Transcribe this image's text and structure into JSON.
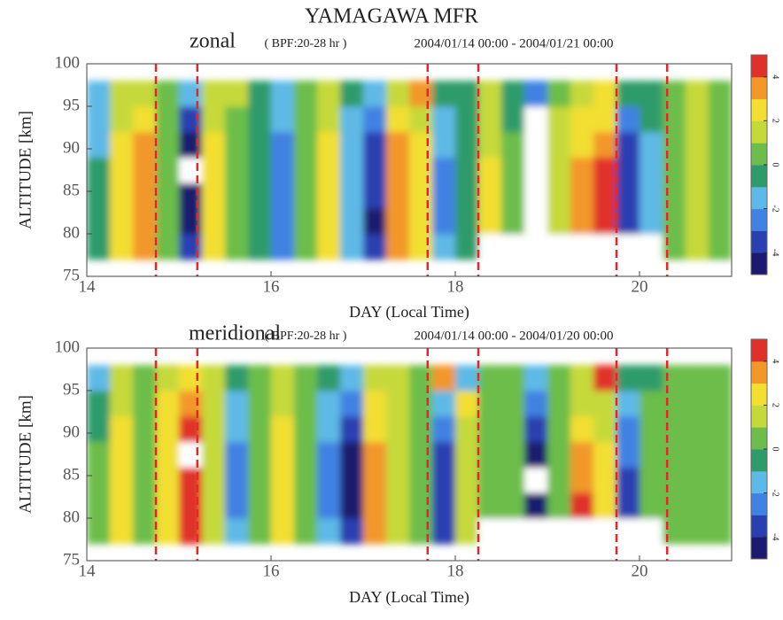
{
  "title": "YAMAGAWA MFR",
  "chart_data": [
    {
      "type": "heatmap",
      "name": "zonal",
      "filter": "( BPF:20-28 hr )",
      "period": "2004/01/14 00:00 - 2004/01/21 00:00",
      "xlabel": "DAY (Local Time)",
      "ylabel": "ALTITUDE [km]",
      "xlim": [
        14,
        21
      ],
      "xticks": [
        14,
        16,
        18,
        20
      ],
      "ylim": [
        75,
        100
      ],
      "yticks": [
        75,
        80,
        85,
        90,
        95,
        100
      ],
      "zlim": [
        -5,
        5
      ],
      "zticks": [
        -4,
        -2,
        0,
        2,
        4
      ],
      "colormap": [
        "#1c1a6e",
        "#2a3fb0",
        "#3f82e2",
        "#5fb9e6",
        "#2f9b6a",
        "#6cbd4a",
        "#c6d93a",
        "#f2df30",
        "#f2972a",
        "#e0302a"
      ],
      "marker_color": "#e8262a",
      "markers": [
        14.75,
        15.2,
        17.7,
        18.25,
        19.75,
        20.3
      ],
      "x": [
        14.125,
        14.375,
        14.625,
        14.875,
        15.125,
        15.375,
        15.625,
        15.875,
        16.125,
        16.375,
        16.625,
        16.875,
        17.125,
        17.375,
        17.625,
        17.875,
        18.125,
        18.375,
        18.625,
        18.875,
        19.125,
        19.375,
        19.625,
        19.875,
        20.125,
        20.375,
        20.625,
        20.875
      ],
      "y": [
        78.5,
        81.5,
        84.5,
        87.5,
        90.5,
        93.5,
        96.5
      ],
      "z": [
        [
          -1,
          2,
          3,
          0,
          -4,
          2,
          0,
          -1,
          -3,
          0,
          2,
          -2,
          -4,
          3,
          2,
          -2,
          -1,
          null,
          null,
          null,
          null,
          null,
          null,
          null,
          null,
          0,
          1,
          0
        ],
        [
          -1,
          2,
          3.5,
          0,
          -5,
          2,
          0,
          -1,
          -3,
          0,
          2.5,
          -2,
          -4.5,
          3,
          2.5,
          -2.5,
          -1,
          2,
          0,
          -5.5,
          1,
          3,
          4,
          -4,
          -2,
          0,
          1,
          0
        ],
        [
          -1,
          2,
          3.5,
          0,
          -5,
          2,
          0,
          -1,
          -3,
          0,
          2.5,
          -2,
          -4,
          3,
          2.5,
          -2.5,
          -1,
          2,
          0,
          -5.5,
          1,
          3,
          4.5,
          -4,
          -2,
          0,
          1,
          0
        ],
        [
          -1,
          2.5,
          3.5,
          0,
          -5.5,
          2,
          0,
          -1,
          -3,
          0,
          2.5,
          -2,
          -4,
          3.5,
          2,
          -2.5,
          -1,
          2,
          0,
          -5.5,
          1,
          3,
          4,
          -4,
          -2,
          0,
          1,
          0
        ],
        [
          -1.5,
          2,
          3,
          0,
          -4.5,
          2,
          0,
          -1,
          -2.5,
          0,
          2,
          -2,
          -3.5,
          3,
          2,
          -2,
          -1,
          1.5,
          0,
          -5.5,
          1,
          2.5,
          3,
          -3.5,
          -1.5,
          0,
          1,
          0
        ],
        [
          -2,
          1.5,
          2,
          0,
          -3.5,
          1.5,
          0,
          -1,
          -2,
          0,
          1.5,
          -1.5,
          -2.5,
          2,
          1.5,
          -1.5,
          -1,
          1,
          -1,
          -5.5,
          1,
          2,
          2,
          -2.5,
          -1,
          0,
          1,
          0
        ],
        [
          -2,
          1,
          1,
          0,
          -2,
          1,
          1.5,
          -1,
          -1.5,
          0,
          1,
          -1,
          -2,
          1,
          3,
          -1,
          -1,
          1,
          -1,
          -3,
          0,
          1,
          2,
          -1,
          -1,
          0,
          1,
          0
        ]
      ]
    },
    {
      "type": "heatmap",
      "name": "meridional",
      "filter": "( BPF:20-28 hr )",
      "period": "2004/01/14 00:00 - 2004/01/20 00:00",
      "xlabel": "DAY (Local Time)",
      "ylabel": "ALTITUDE [km]",
      "xlim": [
        14,
        21
      ],
      "xticks": [
        14,
        16,
        18,
        20
      ],
      "ylim": [
        75,
        100
      ],
      "yticks": [
        75,
        80,
        85,
        90,
        95,
        100
      ],
      "zlim": [
        -5,
        5
      ],
      "zticks": [
        -4,
        -2,
        0,
        2,
        4
      ],
      "colormap": [
        "#1c1a6e",
        "#2a3fb0",
        "#3f82e2",
        "#5fb9e6",
        "#2f9b6a",
        "#6cbd4a",
        "#c6d93a",
        "#f2df30",
        "#f2972a",
        "#e0302a"
      ],
      "marker_color": "#e8262a",
      "markers": [
        14.75,
        15.2,
        17.7,
        18.25,
        19.75,
        20.3
      ],
      "x": [
        14.125,
        14.375,
        14.625,
        14.875,
        15.125,
        15.375,
        15.625,
        15.875,
        16.125,
        16.375,
        16.625,
        16.875,
        17.125,
        17.375,
        17.625,
        17.875,
        18.125,
        18.375,
        18.625,
        18.875,
        19.125,
        19.375,
        19.625,
        19.875,
        20.125,
        20.375,
        20.625,
        20.875
      ],
      "y": [
        78.5,
        81.5,
        84.5,
        87.5,
        90.5,
        93.5,
        96.5
      ],
      "z": [
        [
          0,
          2,
          0,
          2,
          4,
          1,
          -2,
          0,
          2,
          0,
          -2,
          -4,
          3,
          1.5,
          0,
          -3.5,
          1,
          null,
          null,
          null,
          null,
          null,
          null,
          null,
          null,
          0,
          0,
          0
        ],
        [
          0,
          2,
          0,
          2.5,
          4.5,
          1,
          -2.5,
          0,
          2,
          0,
          -2.5,
          -4.5,
          3,
          1.5,
          0,
          -4,
          1,
          0,
          0,
          -4.5,
          0.5,
          4,
          2,
          -4,
          0,
          0,
          0,
          0
        ],
        [
          0,
          2,
          0,
          2.5,
          4.5,
          1,
          -2.5,
          0,
          2,
          0,
          -2.5,
          -4.5,
          3,
          1.5,
          0,
          -4,
          1,
          0,
          0,
          -5.5,
          0.5,
          3.5,
          2,
          -3.5,
          0,
          0,
          0,
          0
        ],
        [
          0,
          2,
          0,
          2.5,
          5.5,
          1,
          -2.5,
          0,
          2,
          0,
          -2.5,
          -4.5,
          3,
          1.5,
          0,
          -3.5,
          1,
          0,
          0,
          -4.5,
          0.5,
          3,
          2,
          -3,
          0,
          0,
          0,
          0
        ],
        [
          -1,
          2,
          0,
          2,
          4.5,
          1,
          -2,
          0,
          2,
          0,
          -2,
          -4,
          2.5,
          1,
          0,
          -3,
          1,
          0,
          0,
          -4,
          0.5,
          2.5,
          1.5,
          -2.5,
          0,
          0,
          0,
          0
        ],
        [
          -1,
          1.5,
          0,
          2,
          3.5,
          1,
          -1.5,
          0,
          1.5,
          0,
          -1.5,
          -3,
          2,
          1,
          0,
          -2,
          2,
          0,
          0,
          -3,
          0.5,
          1.5,
          1,
          -2,
          0,
          0,
          0,
          0
        ],
        [
          -2,
          1,
          0,
          1,
          2,
          1,
          -1,
          0,
          1,
          0,
          -1,
          -2,
          1,
          1,
          0,
          3.5,
          -2,
          0,
          0,
          -2,
          0,
          1,
          4,
          -1,
          -1,
          0,
          0,
          0
        ]
      ]
    }
  ]
}
